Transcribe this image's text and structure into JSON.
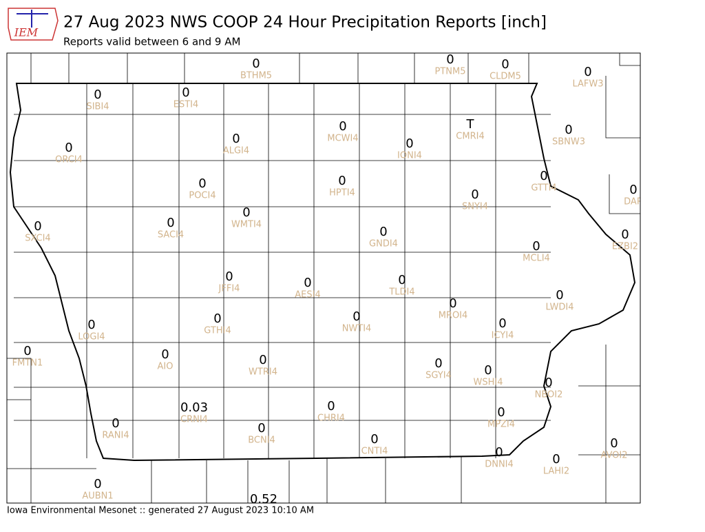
{
  "header": {
    "logo": "IEM",
    "title": "27 Aug 2023 NWS COOP 24 Hour Precipitation Reports [inch]",
    "subtitle": "Reports valid between 6 and 9 AM"
  },
  "footer": "Iowa Environmental Mesonet :: generated 27 August 2023 10:10 AM",
  "stations": [
    {
      "value": 0,
      "id": "BTHM5"
    },
    {
      "value": 0,
      "id": "PTNM5"
    },
    {
      "value": 0,
      "id": "CLDM5"
    },
    {
      "value": 0,
      "id": "LAFW3"
    },
    {
      "value": 0,
      "id": "SIBI4"
    },
    {
      "value": 0,
      "id": "ESTI4"
    },
    {
      "value": 0,
      "id": "ORCI4"
    },
    {
      "value": 0,
      "id": "ALGI4"
    },
    {
      "value": 0,
      "id": "MCWI4"
    },
    {
      "value": "T",
      "id": "CMRI4"
    },
    {
      "value": 0,
      "id": "IONI4"
    },
    {
      "value": 0,
      "id": "SBNW3"
    },
    {
      "value": 0,
      "id": "POCI4"
    },
    {
      "value": 0,
      "id": "HPTI4"
    },
    {
      "value": 0,
      "id": "GTTI4"
    },
    {
      "value": 0,
      "id": "SNYI4"
    },
    {
      "value": 0,
      "id": "DAR"
    },
    {
      "value": 0,
      "id": "SXCI4"
    },
    {
      "value": 0,
      "id": "SACI4"
    },
    {
      "value": 0,
      "id": "WMTI4"
    },
    {
      "value": 0,
      "id": "GNDI4"
    },
    {
      "value": 0,
      "id": "EZBI2"
    },
    {
      "value": 0,
      "id": "MCLI4"
    },
    {
      "value": 0,
      "id": "JFFI4"
    },
    {
      "value": 0,
      "id": "AESI4"
    },
    {
      "value": 0,
      "id": "TLDI4"
    },
    {
      "value": 0,
      "id": "LWDI4"
    },
    {
      "value": 0,
      "id": "MROI4"
    },
    {
      "value": 0,
      "id": "LOGI4"
    },
    {
      "value": 0,
      "id": "GTHI4"
    },
    {
      "value": 0,
      "id": "NWTI4"
    },
    {
      "value": 0,
      "id": "ICYI4"
    },
    {
      "value": 0,
      "id": "FMTN1"
    },
    {
      "value": 0,
      "id": "AIO"
    },
    {
      "value": 0,
      "id": "WTRI4"
    },
    {
      "value": 0,
      "id": "SGYI4"
    },
    {
      "value": 0,
      "id": "WSHI4"
    },
    {
      "value": 0,
      "id": "NBOI2"
    },
    {
      "value": 0.03,
      "id": "CRNI4"
    },
    {
      "value": 0,
      "id": "CHRI4"
    },
    {
      "value": 0,
      "id": "RANI4"
    },
    {
      "value": 0,
      "id": "BCNI4"
    },
    {
      "value": 0,
      "id": "MPZI4"
    },
    {
      "value": 0,
      "id": "CNTI4"
    },
    {
      "value": 0,
      "id": "AVOI2"
    },
    {
      "value": 0,
      "id": "DNNI4"
    },
    {
      "value": 0,
      "id": "LAHI2"
    },
    {
      "value": 0,
      "id": "AUBN1"
    },
    {
      "value": 0.52
    }
  ]
}
